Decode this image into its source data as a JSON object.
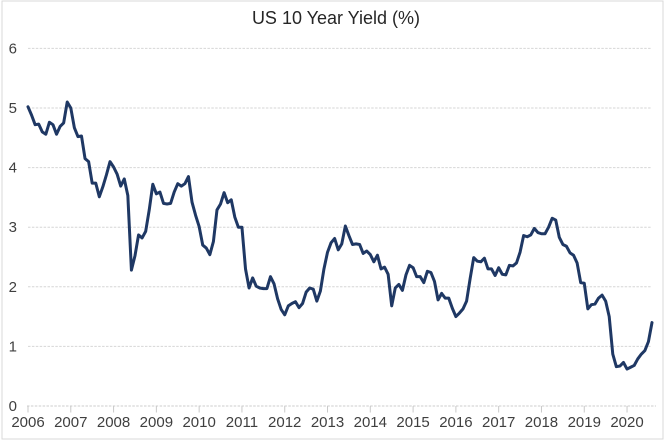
{
  "chart_data": {
    "type": "line",
    "title": "US 10 Year Yield (%)",
    "xlabel": "",
    "ylabel": "",
    "ylim": [
      0,
      6
    ],
    "y_ticks": [
      0,
      1,
      2,
      3,
      4,
      5,
      6
    ],
    "x_tick_labels": [
      "2006",
      "2007",
      "2008",
      "2009",
      "2010",
      "2011",
      "2012",
      "2013",
      "2014",
      "2015",
      "2016",
      "2017",
      "2018",
      "2019",
      "2020"
    ],
    "frequency": "monthly",
    "x_period_start": "2006-07",
    "x_period_end": "2021-02",
    "grid": "horizontal-dashed",
    "legend": "none",
    "series": [
      {
        "name": "US 10 Year Yield",
        "values": [
          5.02,
          4.88,
          4.72,
          4.73,
          4.6,
          4.56,
          4.76,
          4.72,
          4.56,
          4.69,
          4.75,
          5.1,
          5.0,
          4.67,
          4.52,
          4.53,
          4.15,
          4.1,
          3.74,
          3.74,
          3.51,
          3.68,
          3.88,
          4.1,
          4.01,
          3.89,
          3.69,
          3.81,
          3.53,
          2.28,
          2.52,
          2.87,
          2.82,
          2.93,
          3.29,
          3.72,
          3.56,
          3.59,
          3.4,
          3.39,
          3.4,
          3.59,
          3.73,
          3.69,
          3.73,
          3.85,
          3.42,
          3.2,
          3.01,
          2.7,
          2.65,
          2.54,
          2.76,
          3.29,
          3.39,
          3.58,
          3.41,
          3.46,
          3.17,
          3.0,
          3.0,
          2.3,
          1.98,
          2.15,
          2.01,
          1.98,
          1.97,
          1.97,
          2.17,
          2.05,
          1.8,
          1.62,
          1.53,
          1.68,
          1.72,
          1.75,
          1.65,
          1.72,
          1.91,
          1.98,
          1.96,
          1.76,
          1.93,
          2.3,
          2.58,
          2.74,
          2.81,
          2.62,
          2.72,
          3.02,
          2.86,
          2.71,
          2.72,
          2.71,
          2.56,
          2.6,
          2.54,
          2.42,
          2.53,
          2.3,
          2.33,
          2.21,
          1.68,
          1.98,
          2.04,
          1.94,
          2.2,
          2.36,
          2.32,
          2.17,
          2.17,
          2.07,
          2.26,
          2.24,
          2.09,
          1.78,
          1.89,
          1.81,
          1.81,
          1.64,
          1.5,
          1.56,
          1.63,
          1.76,
          2.14,
          2.49,
          2.43,
          2.42,
          2.48,
          2.3,
          2.3,
          2.19,
          2.32,
          2.21,
          2.2,
          2.36,
          2.35,
          2.4,
          2.58,
          2.86,
          2.84,
          2.87,
          2.98,
          2.91,
          2.89,
          2.89,
          3.0,
          3.15,
          3.12,
          2.83,
          2.71,
          2.68,
          2.57,
          2.53,
          2.4,
          2.07,
          2.06,
          1.63,
          1.7,
          1.71,
          1.81,
          1.86,
          1.76,
          1.5,
          0.87,
          0.66,
          0.67,
          0.73,
          0.62,
          0.65,
          0.68,
          0.79,
          0.87,
          0.93,
          1.08,
          1.4
        ]
      }
    ],
    "colors": {
      "line": "#1F3864",
      "gridline": "#D6D6D6",
      "axis": "#CCCCCC",
      "tick": "#C9C9C9",
      "label": "#3F3F3F",
      "title": "#262626",
      "border": "#D9D9D9",
      "background": "#FFFFFF"
    }
  }
}
